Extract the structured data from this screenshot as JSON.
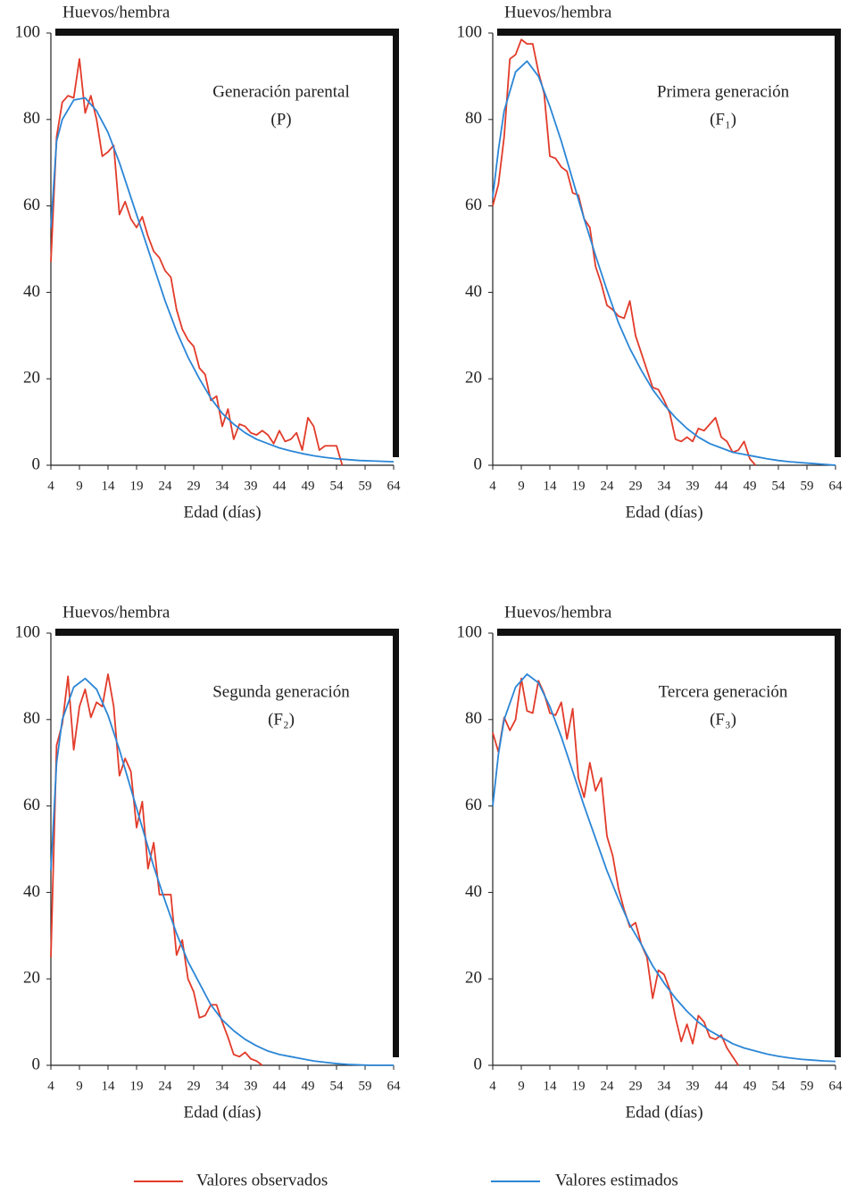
{
  "chart_data": [
    {
      "type": "line",
      "title": "Generación parental",
      "subtitle": "(P)",
      "ylabel": "Huevos/hembra",
      "xlabel": "Edad (días)",
      "xlim": [
        4,
        64
      ],
      "ylim": [
        0,
        100
      ],
      "xticks": [
        4,
        9,
        14,
        19,
        24,
        29,
        34,
        39,
        44,
        49,
        54,
        59,
        64
      ],
      "yticks": [
        0,
        20,
        40,
        60,
        80,
        100
      ],
      "series": [
        {
          "x": [
            4,
            5,
            6,
            7,
            8,
            9,
            10,
            11,
            12,
            13,
            14,
            15,
            16,
            17,
            18,
            19,
            20,
            21,
            22,
            23,
            24,
            25,
            26,
            27,
            28,
            29,
            30,
            31,
            32,
            33,
            34,
            35,
            36,
            37,
            38,
            39,
            40,
            41,
            42,
            43,
            44,
            45,
            46,
            47,
            48,
            49,
            50,
            51,
            52,
            53,
            54,
            55
          ],
          "values": [
            47,
            76,
            84,
            85.5,
            85,
            94,
            81.5,
            85.5,
            80,
            71.5,
            72.5,
            74,
            58,
            61,
            57,
            55,
            57.5,
            53,
            49.5,
            48,
            45,
            43.5,
            36,
            31.5,
            29,
            27.5,
            22.5,
            21,
            15,
            16,
            9,
            13,
            6,
            9.5,
            9,
            7.5,
            7,
            8,
            7,
            5,
            8,
            5.5,
            6,
            7.5,
            3.5,
            11,
            9,
            3.5,
            4.5,
            4.5,
            4.5,
            0
          ]
        },
        {
          "x": [
            4,
            5,
            6,
            8,
            10,
            12,
            14,
            16,
            18,
            20,
            22,
            24,
            26,
            28,
            30,
            32,
            34,
            36,
            38,
            40,
            42,
            44,
            46,
            48,
            50,
            52,
            54,
            56,
            58,
            60,
            62,
            64
          ],
          "values": [
            55,
            75,
            80,
            84.5,
            85,
            82,
            77,
            70,
            62,
            54,
            46,
            38,
            31,
            25,
            20,
            15.5,
            12,
            9.5,
            7.5,
            6,
            5,
            4,
            3.3,
            2.7,
            2.2,
            1.8,
            1.5,
            1.3,
            1.1,
            1,
            0.9,
            0.8
          ]
        }
      ]
    },
    {
      "type": "line",
      "title": "Primera generación",
      "subtitle": "(F₁)",
      "ylabel": "Huevos/hembra",
      "xlabel": "Edad (días)",
      "xlim": [
        4,
        64
      ],
      "ylim": [
        0,
        100
      ],
      "xticks": [
        4,
        9,
        14,
        19,
        24,
        29,
        34,
        39,
        44,
        49,
        54,
        59,
        64
      ],
      "yticks": [
        0,
        20,
        40,
        60,
        80,
        100
      ],
      "series": [
        {
          "x": [
            4,
            5,
            6,
            7,
            8,
            9,
            10,
            11,
            12,
            13,
            14,
            15,
            16,
            17,
            18,
            19,
            20,
            21,
            22,
            23,
            24,
            25,
            26,
            27,
            28,
            29,
            30,
            31,
            32,
            33,
            34,
            35,
            36,
            37,
            38,
            39,
            40,
            41,
            42,
            43,
            44,
            45,
            46,
            47,
            48,
            49,
            50
          ],
          "values": [
            60,
            65,
            76,
            94,
            95,
            98.5,
            97.5,
            97.5,
            91,
            86,
            71.5,
            71,
            69,
            68,
            63,
            62.5,
            57,
            55,
            46,
            42,
            37,
            36,
            34.5,
            34,
            38,
            30,
            26,
            22,
            18,
            17.5,
            15,
            12,
            6,
            5.5,
            6.5,
            5.5,
            8.5,
            8,
            9.5,
            11,
            6.5,
            5.5,
            3,
            3.5,
            5.5,
            1.5,
            0
          ]
        },
        {
          "x": [
            4,
            5,
            6,
            8,
            10,
            12,
            14,
            16,
            18,
            20,
            22,
            24,
            26,
            28,
            30,
            32,
            34,
            36,
            38,
            40,
            42,
            44,
            46,
            48,
            50,
            52,
            54,
            56,
            58,
            60,
            62,
            64
          ],
          "values": [
            62,
            73,
            82,
            91,
            93.5,
            90,
            83,
            75,
            66,
            57,
            48.5,
            40.5,
            33,
            27,
            22,
            17.5,
            14,
            11,
            8.5,
            6.5,
            5,
            4,
            3,
            2.5,
            2,
            1.5,
            1.1,
            0.8,
            0.6,
            0.4,
            0.2,
            0
          ]
        }
      ]
    },
    {
      "type": "line",
      "title": "Segunda generación",
      "subtitle": "(F₂)",
      "ylabel": "Huevos/hembra",
      "xlabel": "Edad (días)",
      "xlim": [
        4,
        64
      ],
      "ylim": [
        0,
        100
      ],
      "xticks": [
        4,
        9,
        14,
        19,
        24,
        29,
        34,
        39,
        44,
        49,
        54,
        59,
        64
      ],
      "yticks": [
        0,
        20,
        40,
        60,
        80,
        100
      ],
      "series": [
        {
          "x": [
            4,
            5,
            6,
            7,
            8,
            9,
            10,
            11,
            12,
            13,
            14,
            15,
            16,
            17,
            18,
            19,
            20,
            21,
            22,
            23,
            24,
            25,
            26,
            27,
            28,
            29,
            30,
            31,
            32,
            33,
            34,
            35,
            36,
            37,
            38,
            39,
            40,
            41
          ],
          "values": [
            25,
            74,
            79,
            90,
            73,
            83,
            87,
            80.5,
            84,
            83,
            90.5,
            83,
            67,
            71,
            68,
            55,
            61,
            45.5,
            51.5,
            39.5,
            39.5,
            39.5,
            25.5,
            29,
            20,
            17,
            11,
            11.5,
            14,
            14,
            10,
            6.5,
            2.5,
            2,
            3,
            1.5,
            1,
            0
          ]
        },
        {
          "x": [
            4,
            5,
            6,
            8,
            10,
            12,
            14,
            16,
            18,
            20,
            22,
            24,
            26,
            28,
            30,
            32,
            34,
            36,
            38,
            40,
            42,
            44,
            46,
            48,
            50,
            52,
            54,
            56,
            58,
            60,
            62,
            64
          ],
          "values": [
            45,
            70,
            80,
            87.5,
            89.5,
            87,
            81,
            73,
            64,
            55,
            46,
            38,
            30.5,
            24,
            19,
            14,
            10.5,
            8,
            6,
            4.5,
            3.3,
            2.5,
            2,
            1.5,
            1,
            0.7,
            0.4,
            0.2,
            0.1,
            0,
            0,
            0
          ]
        }
      ]
    },
    {
      "type": "line",
      "title": "Tercera generación",
      "subtitle": "(F₃)",
      "ylabel": "Huevos/hembra",
      "xlabel": "Edad (días)",
      "xlim": [
        4,
        64
      ],
      "ylim": [
        0,
        100
      ],
      "xticks": [
        4,
        9,
        14,
        19,
        24,
        29,
        34,
        39,
        44,
        49,
        54,
        59,
        64
      ],
      "yticks": [
        0,
        20,
        40,
        60,
        80,
        100
      ],
      "series": [
        {
          "x": [
            4,
            5,
            6,
            7,
            8,
            9,
            10,
            11,
            12,
            13,
            14,
            15,
            16,
            17,
            18,
            19,
            20,
            21,
            22,
            23,
            24,
            25,
            26,
            27,
            28,
            29,
            30,
            31,
            32,
            33,
            34,
            35,
            36,
            37,
            38,
            39,
            40,
            41,
            42,
            43,
            44,
            45,
            46,
            47
          ],
          "values": [
            77,
            72.5,
            80.5,
            77.5,
            80,
            89.5,
            82,
            81.5,
            89,
            86,
            81.5,
            81,
            84,
            75.5,
            82.5,
            66.5,
            62,
            70,
            63.5,
            66.5,
            53,
            48.5,
            41,
            36,
            32,
            33,
            28,
            25,
            15.5,
            22,
            21,
            17.5,
            11,
            5.5,
            9.5,
            5,
            11.5,
            10,
            6.5,
            6,
            7,
            4,
            2,
            0
          ]
        },
        {
          "x": [
            4,
            5,
            6,
            8,
            10,
            12,
            14,
            16,
            18,
            20,
            22,
            24,
            26,
            28,
            30,
            32,
            34,
            36,
            38,
            40,
            42,
            44,
            46,
            48,
            50,
            52,
            54,
            56,
            58,
            60,
            62,
            64
          ],
          "values": [
            60,
            72,
            80,
            87.5,
            90.5,
            88.5,
            83,
            76,
            68,
            60,
            52.5,
            45,
            38.5,
            32.5,
            28,
            23,
            19,
            15.5,
            12.5,
            10,
            8,
            6.5,
            5,
            4,
            3.3,
            2.6,
            2.1,
            1.7,
            1.4,
            1.2,
            1,
            0.9
          ]
        }
      ]
    }
  ],
  "legend": [
    {
      "name": "Valores observados",
      "color": "#e23b2a"
    },
    {
      "name": "Valores estimados",
      "color": "#2b86d6"
    }
  ]
}
